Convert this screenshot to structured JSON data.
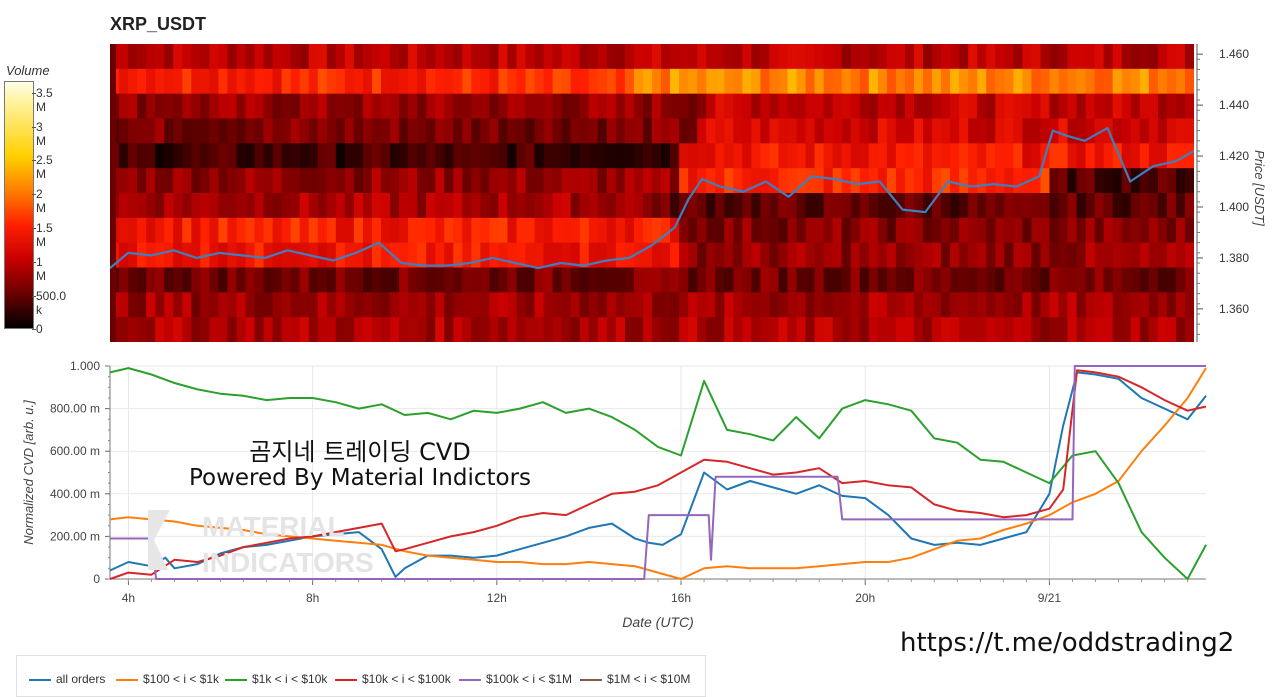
{
  "title": "XRP_USDT",
  "volume_colorbar": {
    "title": "Volume",
    "ticks": [
      "3.5 M",
      "3 M",
      "2.5 M",
      "2 M",
      "1.5 M",
      "1 M",
      "500.0 k",
      "0"
    ]
  },
  "watermark": {
    "line1": "곰지네 트레이딩 CVD",
    "line2": "Powered By Material Indictors",
    "logo_line1": "MATERIAL",
    "logo_line2": "INDICATORS"
  },
  "footer_url": "https://t.me/oddstrading2",
  "colors": {
    "all_orders": "#1f77b4",
    "100_1k": "#ff7f0e",
    "1k_10k": "#2ca02c",
    "10k_100k": "#d62728",
    "100k_1M": "#9467bd",
    "1M_10M": "#8c564b",
    "price_line": "#3f7fbf"
  },
  "chart_data": [
    {
      "type": "heatmap",
      "title": "XRP_USDT",
      "ylabel": "Price [USDT]",
      "y_ticks": [
        "1.460",
        "1.440",
        "1.420",
        "1.400",
        "1.380",
        "1.360"
      ],
      "ylim": [
        1.347,
        1.464
      ],
      "x_range_hours": [
        3.6,
        27.4
      ],
      "colorbar_range": [
        0,
        3800000
      ],
      "price_series": {
        "name": "price",
        "x": [
          3.6,
          4.0,
          4.5,
          5.0,
          5.5,
          6.0,
          6.5,
          7.0,
          7.5,
          8.0,
          8.5,
          9.0,
          9.5,
          10.0,
          10.5,
          11.0,
          11.5,
          12.0,
          12.5,
          13.0,
          13.5,
          14.0,
          14.5,
          15.0,
          15.5,
          16.0,
          16.3,
          16.6,
          17.0,
          17.5,
          18.0,
          18.5,
          19.0,
          19.5,
          20.0,
          20.5,
          21.0,
          21.5,
          22.0,
          22.5,
          23.0,
          23.5,
          24.0,
          24.3,
          24.6,
          25.0,
          25.5,
          26.0,
          26.5,
          27.0,
          27.4
        ],
        "y": [
          1.376,
          1.382,
          1.381,
          1.383,
          1.38,
          1.382,
          1.381,
          1.38,
          1.383,
          1.381,
          1.379,
          1.382,
          1.386,
          1.378,
          1.377,
          1.377,
          1.378,
          1.38,
          1.378,
          1.376,
          1.378,
          1.377,
          1.379,
          1.38,
          1.385,
          1.392,
          1.403,
          1.411,
          1.408,
          1.406,
          1.41,
          1.404,
          1.412,
          1.411,
          1.409,
          1.41,
          1.399,
          1.398,
          1.41,
          1.408,
          1.409,
          1.408,
          1.412,
          1.43,
          1.428,
          1.426,
          1.431,
          1.41,
          1.416,
          1.418,
          1.422
        ]
      }
    },
    {
      "type": "line",
      "xlabel": "Date (UTC)",
      "ylabel": "Normalized CVD [arb. u.]",
      "ylim": [
        0,
        1.0
      ],
      "xlim": [
        3.6,
        27.4
      ],
      "x_ticks": [
        "4h",
        "8h",
        "12h",
        "16h",
        "20h",
        "9/21"
      ],
      "x_tick_values": [
        4,
        8,
        12,
        16,
        20,
        24
      ],
      "y_ticks": [
        "1.000",
        "800.00 m",
        "600.00 m",
        "400.00 m",
        "200.00 m",
        "0"
      ],
      "y_tick_values": [
        1.0,
        0.8,
        0.6,
        0.4,
        0.2,
        0
      ],
      "series": [
        {
          "name": "all orders",
          "key": "all_orders",
          "x": [
            3.6,
            4.0,
            4.5,
            4.8,
            5.0,
            5.5,
            6.0,
            6.5,
            7.0,
            7.5,
            8.0,
            8.5,
            9.0,
            9.5,
            9.8,
            10.0,
            10.5,
            11.0,
            11.5,
            12.0,
            12.5,
            13.0,
            13.5,
            14.0,
            14.5,
            15.0,
            15.3,
            15.6,
            16.0,
            16.5,
            17.0,
            17.5,
            18.0,
            18.5,
            19.0,
            19.5,
            20.0,
            20.5,
            21.0,
            21.5,
            22.0,
            22.5,
            23.0,
            23.5,
            24.0,
            24.3,
            24.6,
            25.0,
            25.5,
            26.0,
            26.5,
            27.0,
            27.4
          ],
          "y": [
            0.04,
            0.08,
            0.06,
            0.1,
            0.05,
            0.07,
            0.12,
            0.15,
            0.16,
            0.18,
            0.2,
            0.21,
            0.22,
            0.14,
            0.01,
            0.05,
            0.11,
            0.11,
            0.1,
            0.11,
            0.14,
            0.17,
            0.2,
            0.24,
            0.26,
            0.19,
            0.17,
            0.16,
            0.21,
            0.5,
            0.42,
            0.46,
            0.43,
            0.4,
            0.44,
            0.39,
            0.38,
            0.3,
            0.19,
            0.16,
            0.17,
            0.16,
            0.19,
            0.22,
            0.4,
            0.72,
            0.97,
            0.96,
            0.94,
            0.85,
            0.8,
            0.75,
            0.86
          ]
        },
        {
          "name": "$100 < i < $1k",
          "key": "100_1k",
          "x": [
            3.6,
            4.0,
            4.5,
            5.0,
            5.5,
            6.0,
            6.5,
            7.0,
            7.5,
            8.0,
            8.5,
            9.0,
            9.5,
            10.0,
            10.5,
            11.0,
            11.5,
            12.0,
            12.5,
            13.0,
            13.5,
            14.0,
            14.5,
            15.0,
            15.5,
            16.0,
            16.5,
            17.0,
            17.5,
            18.0,
            18.5,
            19.0,
            19.5,
            20.0,
            20.5,
            21.0,
            21.5,
            22.0,
            22.5,
            23.0,
            23.5,
            24.0,
            24.5,
            25.0,
            25.5,
            26.0,
            26.5,
            27.0,
            27.4
          ],
          "y": [
            0.28,
            0.29,
            0.28,
            0.27,
            0.25,
            0.24,
            0.23,
            0.21,
            0.2,
            0.19,
            0.18,
            0.17,
            0.16,
            0.13,
            0.11,
            0.1,
            0.09,
            0.08,
            0.08,
            0.07,
            0.07,
            0.08,
            0.07,
            0.06,
            0.03,
            0.0,
            0.05,
            0.06,
            0.05,
            0.05,
            0.05,
            0.06,
            0.07,
            0.08,
            0.08,
            0.1,
            0.14,
            0.18,
            0.19,
            0.23,
            0.26,
            0.3,
            0.36,
            0.4,
            0.46,
            0.6,
            0.72,
            0.85,
            0.99
          ]
        },
        {
          "name": "$1k < i < $10k",
          "key": "1k_10k",
          "x": [
            3.6,
            4.0,
            4.5,
            5.0,
            5.5,
            6.0,
            6.5,
            7.0,
            7.5,
            8.0,
            8.5,
            9.0,
            9.5,
            10.0,
            10.5,
            11.0,
            11.5,
            12.0,
            12.5,
            13.0,
            13.5,
            14.0,
            14.5,
            15.0,
            15.5,
            16.0,
            16.5,
            17.0,
            17.5,
            18.0,
            18.5,
            19.0,
            19.5,
            20.0,
            20.5,
            21.0,
            21.5,
            22.0,
            22.5,
            23.0,
            23.5,
            24.0,
            24.5,
            25.0,
            25.5,
            26.0,
            26.5,
            27.0,
            27.4
          ],
          "y": [
            0.97,
            0.99,
            0.96,
            0.92,
            0.89,
            0.87,
            0.86,
            0.84,
            0.85,
            0.85,
            0.83,
            0.8,
            0.82,
            0.77,
            0.78,
            0.75,
            0.79,
            0.78,
            0.8,
            0.83,
            0.78,
            0.8,
            0.76,
            0.7,
            0.62,
            0.58,
            0.93,
            0.7,
            0.68,
            0.65,
            0.76,
            0.66,
            0.8,
            0.84,
            0.82,
            0.79,
            0.66,
            0.64,
            0.56,
            0.55,
            0.5,
            0.45,
            0.58,
            0.6,
            0.45,
            0.22,
            0.1,
            0.0,
            0.16
          ]
        },
        {
          "name": "$10k < i < $100k",
          "key": "10k_100k",
          "x": [
            3.6,
            4.0,
            4.5,
            5.0,
            5.5,
            6.0,
            6.5,
            7.0,
            7.5,
            8.0,
            8.5,
            9.0,
            9.5,
            9.8,
            10.0,
            10.5,
            11.0,
            11.5,
            12.0,
            12.5,
            13.0,
            13.5,
            14.0,
            14.5,
            15.0,
            15.5,
            16.0,
            16.5,
            17.0,
            17.5,
            18.0,
            18.5,
            19.0,
            19.5,
            20.0,
            20.5,
            21.0,
            21.5,
            22.0,
            22.5,
            23.0,
            23.5,
            24.0,
            24.3,
            24.6,
            25.0,
            25.5,
            26.0,
            26.5,
            27.0,
            27.4
          ],
          "y": [
            0.0,
            0.03,
            0.02,
            0.09,
            0.08,
            0.11,
            0.15,
            0.17,
            0.19,
            0.2,
            0.22,
            0.24,
            0.26,
            0.13,
            0.14,
            0.17,
            0.2,
            0.22,
            0.25,
            0.29,
            0.31,
            0.3,
            0.35,
            0.4,
            0.41,
            0.44,
            0.5,
            0.56,
            0.55,
            0.52,
            0.49,
            0.5,
            0.52,
            0.45,
            0.46,
            0.44,
            0.43,
            0.35,
            0.32,
            0.31,
            0.29,
            0.3,
            0.33,
            0.42,
            0.98,
            0.97,
            0.95,
            0.9,
            0.84,
            0.79,
            0.81
          ]
        },
        {
          "name": "$100k < i < $1M",
          "key": "100k_1M",
          "x": [
            3.6,
            4.5,
            4.6,
            5.0,
            6.0,
            7.0,
            8.0,
            9.0,
            10.0,
            11.0,
            12.0,
            13.0,
            14.0,
            15.0,
            15.2,
            15.3,
            16.0,
            16.6,
            16.65,
            16.75,
            16.9,
            18.0,
            19.0,
            19.4,
            19.5,
            20.0,
            21.0,
            22.0,
            23.0,
            24.0,
            24.35,
            24.5,
            24.55,
            25.0,
            26.0,
            27.0,
            27.4
          ],
          "y": [
            0.19,
            0.19,
            0.0,
            0.0,
            0.0,
            0.0,
            0.0,
            0.0,
            0.0,
            0.0,
            0.0,
            0.0,
            0.0,
            0.0,
            0.0,
            0.3,
            0.3,
            0.3,
            0.09,
            0.48,
            0.48,
            0.48,
            0.48,
            0.48,
            0.28,
            0.28,
            0.28,
            0.28,
            0.28,
            0.28,
            0.28,
            0.28,
            1.0,
            1.0,
            1.0,
            1.0,
            1.0
          ]
        },
        {
          "name": "$1M < i < $10M",
          "key": "1M_10M",
          "x": [],
          "y": []
        }
      ]
    }
  ]
}
